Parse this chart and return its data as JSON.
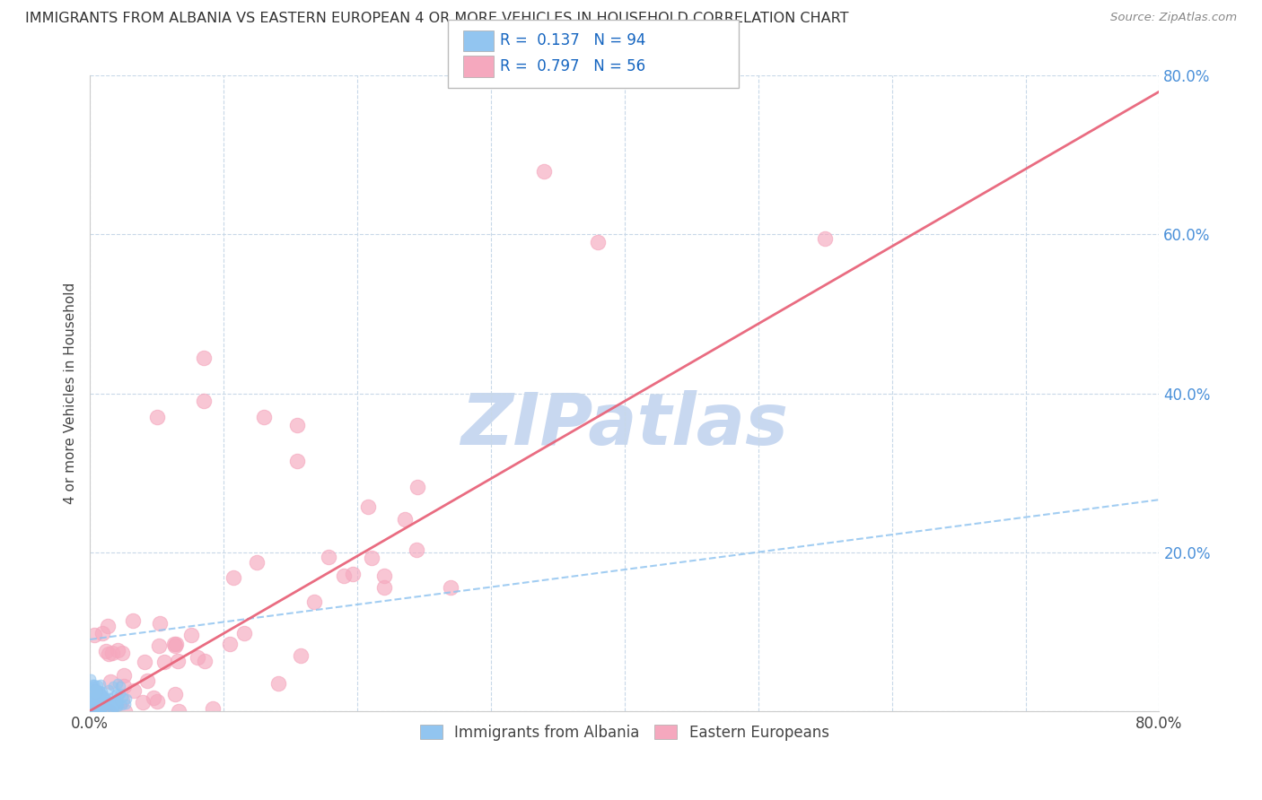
{
  "title": "IMMIGRANTS FROM ALBANIA VS EASTERN EUROPEAN 4 OR MORE VEHICLES IN HOUSEHOLD CORRELATION CHART",
  "source": "Source: ZipAtlas.com",
  "ylabel": "4 or more Vehicles in Household",
  "xlim": [
    0.0,
    0.8
  ],
  "ylim": [
    0.0,
    0.8
  ],
  "albania_R": 0.137,
  "albania_N": 94,
  "eastern_R": 0.797,
  "eastern_N": 56,
  "albania_color": "#92C5F0",
  "eastern_color": "#F5A8BE",
  "trend_albania_color": "#92C5F0",
  "trend_eastern_color": "#E8647A",
  "watermark": "ZIPatlas",
  "watermark_color": "#C8D8F0",
  "legend_color": "#1565C0",
  "background_color": "#ffffff",
  "grid_color": "#C8D8E8",
  "ytick_color": "#4A90D9",
  "xtick_color": "#444444",
  "ylabel_color": "#444444"
}
